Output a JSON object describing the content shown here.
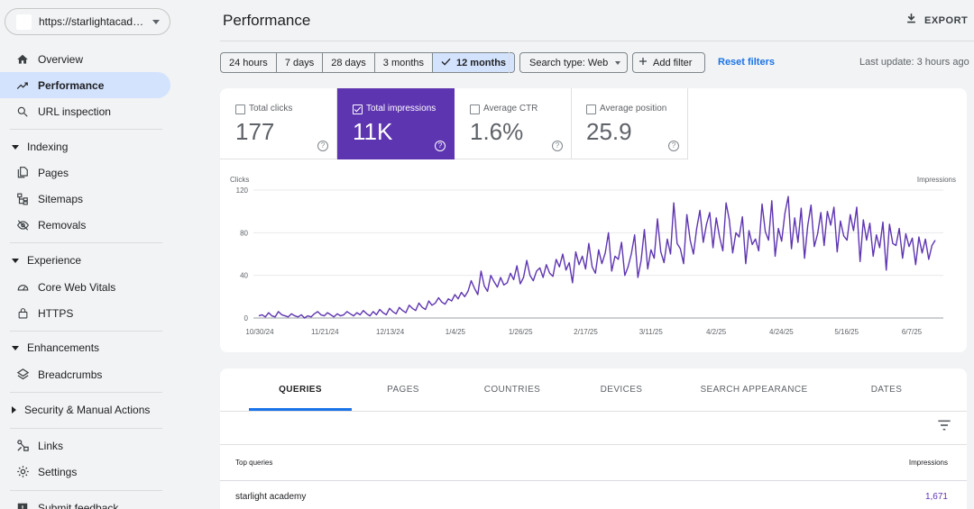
{
  "property": {
    "url": "https://starlightacademy.org/"
  },
  "nav": {
    "overview": "Overview",
    "performance": "Performance",
    "url_inspection": "URL inspection",
    "indexing": "Indexing",
    "pages": "Pages",
    "sitemaps": "Sitemaps",
    "removals": "Removals",
    "experience": "Experience",
    "core_web_vitals": "Core Web Vitals",
    "https": "HTTPS",
    "enhancements": "Enhancements",
    "breadcrumbs": "Breadcrumbs",
    "security": "Security & Manual Actions",
    "links": "Links",
    "settings": "Settings",
    "feedback": "Submit feedback"
  },
  "header": {
    "title": "Performance",
    "export": "EXPORT"
  },
  "toolbar": {
    "ranges": [
      "24 hours",
      "7 days",
      "28 days",
      "3 months",
      "12 months"
    ],
    "selected_range": "12 months",
    "search_type": "Search type: Web",
    "add_filter": "Add filter",
    "reset_filters": "Reset filters",
    "last_update": "Last update: 3 hours ago"
  },
  "metrics": {
    "clicks": {
      "label": "Total clicks",
      "value": "177",
      "selected": false
    },
    "impressions": {
      "label": "Total impressions",
      "value": "11K",
      "selected": true
    },
    "ctr": {
      "label": "Average CTR",
      "value": "1.6%",
      "selected": false
    },
    "position": {
      "label": "Average position",
      "value": "25.9",
      "selected": false
    }
  },
  "chart_data": {
    "type": "line",
    "ylabel": "Clicks",
    "y2label": "Impressions",
    "yticks": [
      "120",
      "80",
      "40",
      "0"
    ],
    "ylim": [
      0,
      120
    ],
    "x_ticks": [
      "10/30/24",
      "11/21/24",
      "12/13/24",
      "1/4/25",
      "1/26/25",
      "2/17/25",
      "3/11/25",
      "4/2/25",
      "4/24/25",
      "5/16/25",
      "6/7/25"
    ],
    "series": [
      {
        "color": "#5e35b1",
        "values": [
          2,
          3,
          1,
          5,
          2,
          1,
          6,
          3,
          2,
          1,
          4,
          2,
          1,
          3,
          0,
          2,
          1,
          4,
          6,
          3,
          2,
          5,
          3,
          1,
          4,
          2,
          3,
          6,
          4,
          2,
          5,
          3,
          7,
          4,
          2,
          6,
          3,
          8,
          5,
          3,
          9,
          6,
          4,
          10,
          7,
          5,
          12,
          9,
          7,
          14,
          10,
          8,
          16,
          12,
          14,
          19,
          15,
          13,
          18,
          16,
          22,
          18,
          24,
          20,
          25,
          35,
          28,
          22,
          44,
          30,
          25,
          40,
          34,
          29,
          38,
          31,
          33,
          42,
          36,
          49,
          32,
          38,
          54,
          40,
          35,
          44,
          47,
          38,
          50,
          42,
          39,
          55,
          48,
          60,
          45,
          52,
          33,
          62,
          50,
          58,
          46,
          70,
          48,
          42,
          64,
          51,
          61,
          80,
          44,
          58,
          55,
          71,
          40,
          48,
          60,
          78,
          38,
          54,
          83,
          46,
          64,
          56,
          93,
          62,
          52,
          74,
          60,
          108,
          70,
          65,
          51,
          97,
          73,
          60,
          84,
          101,
          71,
          88,
          99,
          66,
          94,
          76,
          63,
          108,
          92,
          61,
          80,
          76,
          95,
          51,
          82,
          69,
          74,
          63,
          107,
          81,
          73,
          110,
          58,
          84,
          72,
          98,
          114,
          65,
          94,
          71,
          103,
          56,
          87,
          106,
          67,
          79,
          99,
          68,
          100,
          87,
          104,
          62,
          91,
          77,
          73,
          97,
          82,
          104,
          53,
          92,
          73,
          89,
          58,
          78,
          66,
          90,
          45,
          88,
          70,
          68,
          84,
          56,
          79,
          67,
          75,
          50,
          76,
          61,
          74,
          55,
          68,
          73
        ]
      }
    ]
  },
  "table": {
    "tabs": [
      "QUERIES",
      "PAGES",
      "COUNTRIES",
      "DEVICES",
      "SEARCH APPEARANCE",
      "DATES"
    ],
    "header_query": "Top queries",
    "header_impressions": "Impressions",
    "rows": [
      {
        "query": "starlight academy",
        "impressions": "1,671"
      }
    ]
  },
  "colors": {
    "accent": "#5e35b1",
    "link": "#1a73e8",
    "active_nav": "#d3e3fd"
  }
}
